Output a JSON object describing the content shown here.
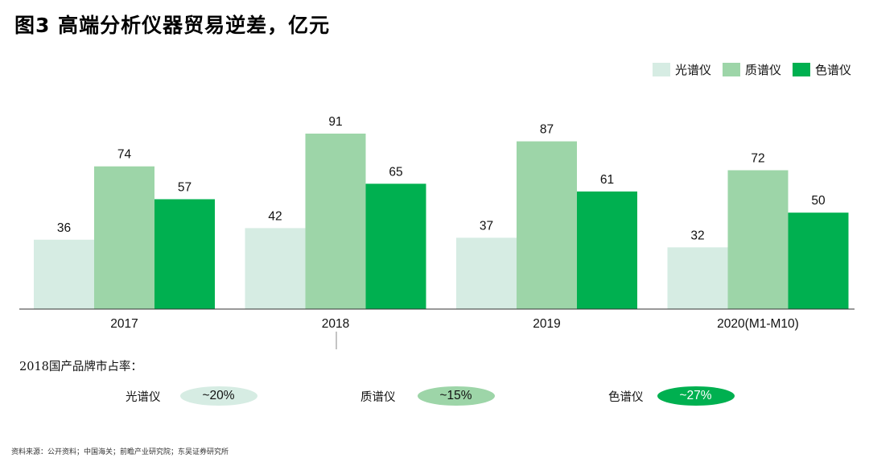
{
  "title": "图3 高端分析仪器贸易逆差，亿元",
  "colors": {
    "guangpuyi": "#d6ece3",
    "zhipuyi": "#9dd5a8",
    "sepuyi": "#00b050"
  },
  "chart_data": {
    "type": "bar",
    "categories": [
      "2017",
      "2018",
      "2019",
      "2020(M1-M10)"
    ],
    "series": [
      {
        "name": "光谱仪",
        "values": [
          36,
          42,
          37,
          32
        ]
      },
      {
        "name": "质谱仪",
        "values": [
          74,
          91,
          87,
          72
        ]
      },
      {
        "name": "色谱仪",
        "values": [
          57,
          65,
          61,
          50
        ]
      }
    ],
    "legend_position": "top-right",
    "data_labels": true,
    "grid": false,
    "ylim": [
      0,
      91
    ]
  },
  "market_share": {
    "title": "2018国产品牌市占率：",
    "items": [
      {
        "label": "光谱仪",
        "value": "~20%"
      },
      {
        "label": "质谱仪",
        "value": "~15%"
      },
      {
        "label": "色谱仪",
        "value": "~27%"
      }
    ]
  },
  "source": "资料来源：公开资料；中国海关；前瞻产业研究院；东吴证券研究所"
}
